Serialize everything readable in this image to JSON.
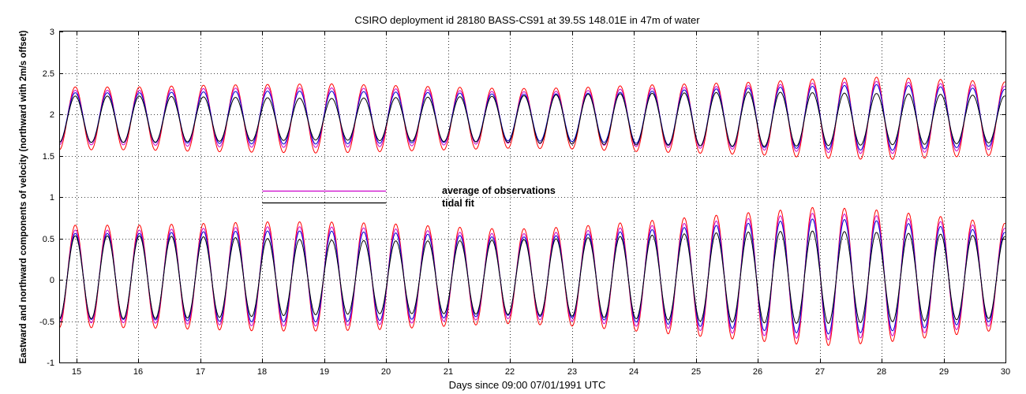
{
  "chart_data": {
    "type": "line",
    "title": "CSIRO deployment id 28180 BASS-CS91 at 39.5S 148.01E in 47m of water",
    "xlabel": "Days since 09:00 07/01/1991 UTC",
    "ylabel": "Eastward  and northward components of velocity (northward with 2m/s offset)",
    "xlim": [
      14.72,
      30.0
    ],
    "ylim": [
      -1,
      3
    ],
    "grid": true,
    "x_ticks": [
      15,
      16,
      17,
      18,
      19,
      20,
      21,
      22,
      23,
      24,
      25,
      26,
      27,
      28,
      29,
      30
    ],
    "x_tick_labels": [
      "15",
      "16",
      "17",
      "18",
      "19",
      "20",
      "21",
      "22",
      "23",
      "24",
      "25",
      "26",
      "27",
      "28",
      "29",
      "30"
    ],
    "y_ticks": [
      -1,
      -0.5,
      0,
      0.5,
      1,
      1.5,
      2,
      2.5,
      3
    ],
    "y_tick_labels": [
      "-1",
      "-0.5",
      "0",
      "0.5",
      "1",
      "1.5",
      "2",
      "2.5",
      "3"
    ],
    "period_days": 0.5175,
    "phase_peak_day": 14.98,
    "legend": [
      {
        "label": "average of observations",
        "color": "#cc00cc",
        "x_range": [
          18.0,
          20.0
        ],
        "y": 1.08
      },
      {
        "label": "tidal fit",
        "color": "#000000",
        "x_range": [
          18.0,
          20.0
        ],
        "y": 0.93
      }
    ],
    "series": [
      {
        "name": "northward (offset +2)",
        "role": "observation",
        "color": "#ff0000",
        "center": 1.95,
        "envelope_days": [
          14.72,
          16,
          17,
          18,
          19,
          20,
          21,
          22,
          23,
          24,
          25,
          26,
          27,
          28,
          29,
          30
        ],
        "envelope_amp": [
          0.38,
          0.38,
          0.4,
          0.41,
          0.42,
          0.4,
          0.38,
          0.36,
          0.37,
          0.4,
          0.42,
          0.44,
          0.48,
          0.5,
          0.47,
          0.44
        ]
      },
      {
        "name": "northward (offset +2)",
        "role": "observation",
        "color": "#cc00cc",
        "center": 1.96,
        "envelope_days": [
          14.72,
          16,
          17,
          18,
          19,
          20,
          21,
          22,
          23,
          24,
          25,
          26,
          27,
          28,
          29,
          30
        ],
        "envelope_amp": [
          0.33,
          0.33,
          0.35,
          0.36,
          0.36,
          0.35,
          0.33,
          0.31,
          0.32,
          0.35,
          0.37,
          0.39,
          0.42,
          0.44,
          0.41,
          0.38
        ]
      },
      {
        "name": "northward (offset +2)",
        "role": "observation",
        "color": "#0000cc",
        "center": 1.96,
        "envelope_days": [
          14.72,
          16,
          17,
          18,
          19,
          20,
          21,
          22,
          23,
          24,
          25,
          26,
          27,
          28,
          29,
          30
        ],
        "envelope_amp": [
          0.3,
          0.3,
          0.31,
          0.32,
          0.32,
          0.31,
          0.3,
          0.28,
          0.29,
          0.31,
          0.34,
          0.36,
          0.38,
          0.4,
          0.37,
          0.34
        ]
      },
      {
        "name": "northward (offset +2)",
        "role": "tidal fit",
        "color": "#000000",
        "center": 1.94,
        "envelope_days": [
          14.72,
          16,
          17,
          18,
          19,
          20,
          21,
          22,
          23,
          24,
          25,
          26,
          27,
          28,
          29,
          30
        ],
        "envelope_amp": [
          0.28,
          0.28,
          0.27,
          0.26,
          0.25,
          0.26,
          0.27,
          0.28,
          0.3,
          0.31,
          0.32,
          0.33,
          0.32,
          0.31,
          0.3,
          0.28
        ]
      },
      {
        "name": "eastward",
        "role": "observation",
        "color": "#ff0000",
        "center": 0.04,
        "envelope_days": [
          14.72,
          16,
          17,
          18,
          19,
          20,
          21,
          22,
          23,
          24,
          25,
          26,
          27,
          28,
          29,
          30
        ],
        "envelope_amp": [
          0.62,
          0.62,
          0.64,
          0.66,
          0.66,
          0.64,
          0.6,
          0.57,
          0.6,
          0.66,
          0.72,
          0.78,
          0.84,
          0.8,
          0.72,
          0.64
        ]
      },
      {
        "name": "eastward",
        "role": "observation",
        "color": "#cc00cc",
        "center": 0.04,
        "envelope_days": [
          14.72,
          16,
          17,
          18,
          19,
          20,
          21,
          22,
          23,
          24,
          25,
          26,
          27,
          28,
          29,
          30
        ],
        "envelope_amp": [
          0.56,
          0.56,
          0.58,
          0.6,
          0.6,
          0.58,
          0.54,
          0.51,
          0.54,
          0.6,
          0.65,
          0.71,
          0.77,
          0.73,
          0.66,
          0.58
        ]
      },
      {
        "name": "eastward",
        "role": "observation",
        "color": "#0000cc",
        "center": 0.04,
        "envelope_days": [
          14.72,
          16,
          17,
          18,
          19,
          20,
          21,
          22,
          23,
          24,
          25,
          26,
          27,
          28,
          29,
          30
        ],
        "envelope_amp": [
          0.52,
          0.52,
          0.54,
          0.55,
          0.55,
          0.53,
          0.5,
          0.47,
          0.5,
          0.55,
          0.6,
          0.65,
          0.7,
          0.67,
          0.6,
          0.53
        ]
      },
      {
        "name": "eastward",
        "role": "tidal fit",
        "color": "#000000",
        "center": 0.03,
        "envelope_days": [
          14.72,
          16,
          17,
          18,
          19,
          20,
          21,
          22,
          23,
          24,
          25,
          26,
          27,
          28,
          29,
          30
        ],
        "envelope_amp": [
          0.5,
          0.5,
          0.49,
          0.47,
          0.45,
          0.44,
          0.44,
          0.45,
          0.47,
          0.5,
          0.53,
          0.55,
          0.56,
          0.54,
          0.52,
          0.49
        ]
      }
    ]
  }
}
